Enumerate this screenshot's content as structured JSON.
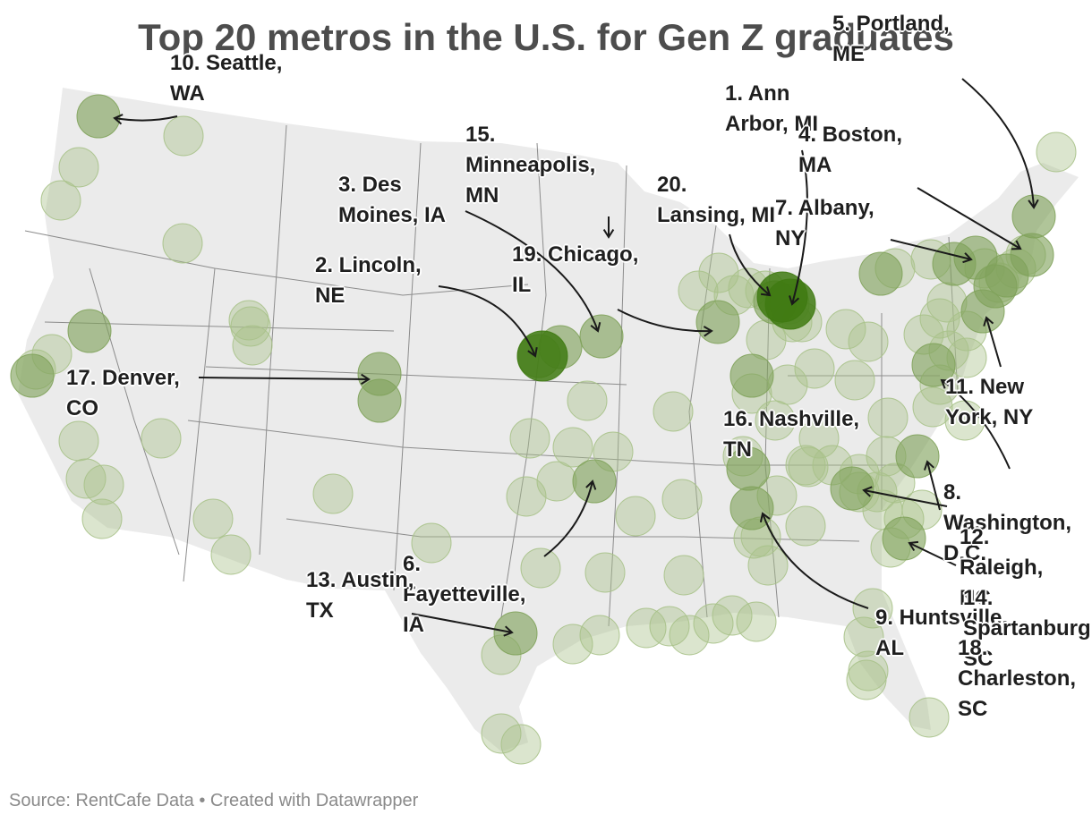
{
  "title": "Top 20 metros in the U.S. for Gen Z graduates",
  "source": "Source: RentCafe Data • Created with Datawrapper",
  "colors": {
    "land": "#ebebeb",
    "border": "#8c8c8c",
    "bubble_light": "#a9c28a",
    "bubble_dark": "#3f7a12",
    "arrow": "#1a1a1a"
  },
  "ranked_metros": [
    {
      "line1": "1. Ann",
      "line2": "Arbor, MI"
    },
    {
      "line1": "2. Lincoln,",
      "line2": "NE"
    },
    {
      "line1": "3. Des",
      "line2": "Moines, IA"
    },
    {
      "line1": "4. Boston,",
      "line2": "MA"
    },
    {
      "line1": "5. Portland,",
      "line2": "ME"
    },
    {
      "line1": "6.",
      "line2": "Fayetteville,",
      "line3": "IA"
    },
    {
      "line1": "7. Albany,",
      "line2": "NY"
    },
    {
      "line1": "8.",
      "line2": "Washington,",
      "line3": "D.C."
    },
    {
      "line1": "9. Huntsville,",
      "line2": "AL"
    },
    {
      "line1": "10. Seattle,",
      "line2": "WA"
    },
    {
      "line1": "11. New",
      "line2": "York, NY"
    },
    {
      "line1": "12.",
      "line2": "Raleigh,",
      "line3": "NC"
    },
    {
      "line1": "13. Austin,",
      "line2": "TX"
    },
    {
      "line1": "14.",
      "line2": "Spartanburg,",
      "line3": "SC"
    },
    {
      "line1": "15.",
      "line2": "Minneapolis,",
      "line3": "MN"
    },
    {
      "line1": "16. Nashville,",
      "line2": "TN"
    },
    {
      "line1": "17. Denver,",
      "line2": "CO"
    },
    {
      "line1": "18.",
      "line2": "Charleston,",
      "line3": "SC"
    },
    {
      "line1": "19. Chicago,",
      "line2": "IL"
    },
    {
      "line1": "20.",
      "line2": "Lansing, MI"
    }
  ]
}
